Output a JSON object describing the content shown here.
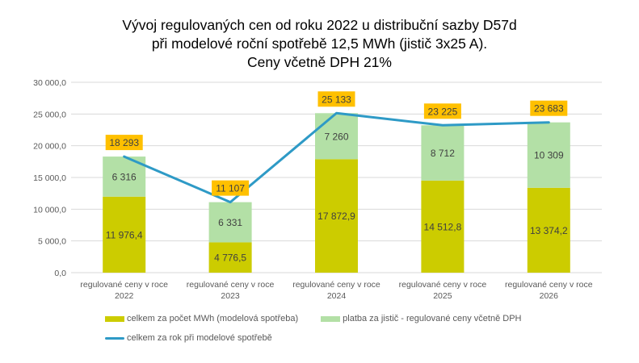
{
  "chart_data": {
    "type": "bar",
    "subtype": "stacked-bar-with-line",
    "title": [
      "Vývoj regulovaných cen od roku 2022 u distribuční sazby D57d",
      "při modelové roční spotřebě 12,5 MWh (jistič 3x25 A).",
      "Ceny včetně DPH 21%"
    ],
    "categories": [
      [
        "regulované ceny v roce",
        "2022"
      ],
      [
        "regulované ceny v roce",
        "2023"
      ],
      [
        "regulované ceny v roce",
        "2024"
      ],
      [
        "regulované ceny v roce",
        "2025"
      ],
      [
        "regulované ceny v roce",
        "2026"
      ]
    ],
    "ylim": [
      0,
      30000
    ],
    "yticks": [
      0,
      5000,
      10000,
      15000,
      20000,
      25000,
      30000
    ],
    "ytick_labels": [
      "0,0",
      "5 000,0",
      "10 000,0",
      "15 000,0",
      "20 000,0",
      "25 000,0",
      "30 000,0"
    ],
    "grid": true,
    "legend_position": "bottom",
    "xlabel": "",
    "ylabel": "",
    "series": [
      {
        "name": "celkem za počet MWh (modelová spotřeba)",
        "type": "bar",
        "color": "#cccc00",
        "values": [
          11976.4,
          4776.5,
          17872.9,
          14512.8,
          13374.2
        ],
        "labels": [
          "11 976,4",
          "4 776,5",
          "17 872,9",
          "14 512,8",
          "13 374,2"
        ]
      },
      {
        "name": "platba za jistič - regulované ceny včetně DPH",
        "type": "bar",
        "color": "#b3e0a6",
        "values": [
          6316,
          6331,
          7260,
          8712,
          10309
        ],
        "labels": [
          "6 316",
          "6 331",
          "7 260",
          "8 712",
          "10 309"
        ]
      },
      {
        "name": "celkem za rok při modelové spotřebě",
        "type": "line",
        "color": "#2e9ac6",
        "values": [
          18293,
          11107,
          25133,
          23225,
          23683
        ],
        "labels": [
          "18 293",
          "11 107",
          "25 133",
          "23 225",
          "23 683"
        ],
        "label_bg": "#ffc000"
      }
    ]
  }
}
